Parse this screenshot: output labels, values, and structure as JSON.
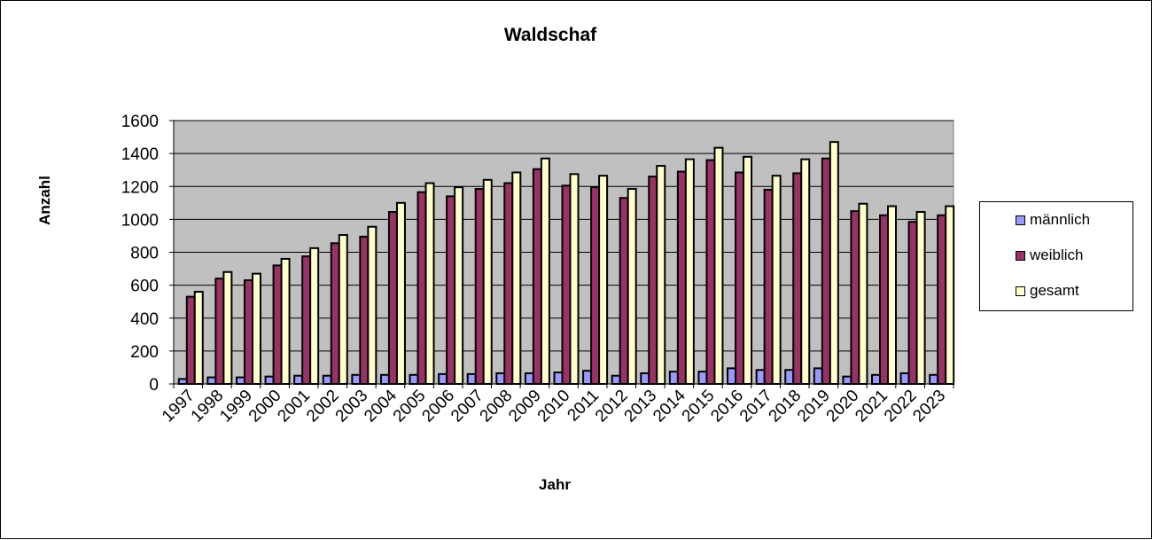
{
  "chart_data": {
    "type": "bar",
    "title": "Waldschaf",
    "xlabel": "Jahr",
    "ylabel": "Anzahl",
    "ylim": [
      0,
      1600
    ],
    "yticks": [
      0,
      200,
      400,
      600,
      800,
      1000,
      1200,
      1400,
      1600
    ],
    "grid": true,
    "legend_position": "right",
    "categories": [
      "1997",
      "1998",
      "1999",
      "2000",
      "2001",
      "2002",
      "2003",
      "2004",
      "2005",
      "2006",
      "2007",
      "2008",
      "2009",
      "2010",
      "2011",
      "2012",
      "2013",
      "2014",
      "2015",
      "2016",
      "2017",
      "2018",
      "2019",
      "2020",
      "2021",
      "2022",
      "2023"
    ],
    "series": [
      {
        "name": "männlich",
        "color": "#9999ff",
        "values": [
          30,
          40,
          40,
          45,
          50,
          50,
          55,
          55,
          55,
          60,
          60,
          65,
          65,
          70,
          80,
          50,
          65,
          75,
          75,
          95,
          85,
          85,
          95,
          45,
          55,
          65,
          55
        ]
      },
      {
        "name": "weiblich",
        "color": "#993366",
        "values": [
          530,
          640,
          630,
          720,
          775,
          855,
          895,
          1045,
          1165,
          1140,
          1185,
          1220,
          1305,
          1205,
          1195,
          1130,
          1260,
          1290,
          1360,
          1285,
          1180,
          1280,
          1370,
          1050,
          1025,
          985,
          1025
        ]
      },
      {
        "name": "gesamt",
        "color": "#ffffcc",
        "values": [
          560,
          680,
          670,
          760,
          825,
          905,
          955,
          1100,
          1220,
          1195,
          1240,
          1285,
          1370,
          1275,
          1265,
          1185,
          1325,
          1365,
          1435,
          1380,
          1265,
          1365,
          1470,
          1095,
          1080,
          1045,
          1080
        ]
      }
    ]
  },
  "legend": {
    "items": [
      {
        "label": "männlich",
        "color": "#9999ff"
      },
      {
        "label": "weiblich",
        "color": "#993366"
      },
      {
        "label": "gesamt",
        "color": "#ffffcc"
      }
    ]
  }
}
